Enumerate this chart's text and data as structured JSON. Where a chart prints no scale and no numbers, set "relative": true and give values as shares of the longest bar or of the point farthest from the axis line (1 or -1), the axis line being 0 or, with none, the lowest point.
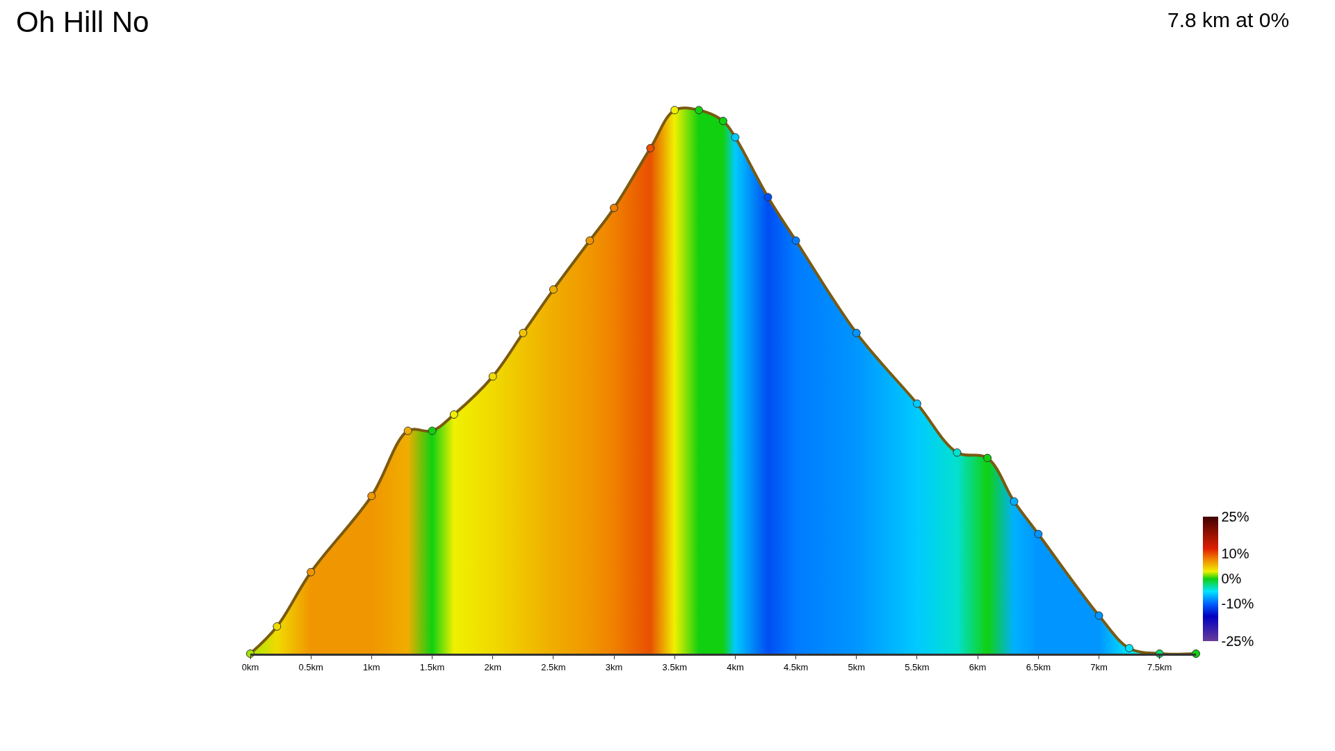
{
  "chart_data": {
    "type": "area",
    "title": "Oh Hill No",
    "subtitle": "7.8 km at 0%",
    "relative": true,
    "grid": false,
    "marker": "circle",
    "x": [
      0,
      0.22,
      0.5,
      1,
      1.3,
      1.5,
      1.68,
      2,
      2.25,
      2.5,
      2.8,
      3,
      3.3,
      3.5,
      3.7,
      3.9,
      4,
      4.27,
      4.5,
      5,
      5.5,
      5.83,
      6.08,
      6.3,
      6.5,
      7,
      7.25,
      7.5,
      7.8
    ],
    "values": [
      0,
      0.05,
      0.15,
      0.29,
      0.41,
      0.41,
      0.44,
      0.51,
      0.59,
      0.67,
      0.76,
      0.82,
      0.93,
      1,
      1,
      0.98,
      0.95,
      0.84,
      0.76,
      0.59,
      0.46,
      0.37,
      0.36,
      0.28,
      0.22,
      0.07,
      0.01,
      0,
      0
    ],
    "colors": [
      "#a5e505",
      "#f0da00",
      "#f09600",
      "#f09600",
      "#f0ad00",
      "#10d010",
      "#f0f000",
      "#f0da00",
      "#f0c300",
      "#f0ad00",
      "#f09600",
      "#f08000",
      "#e85000",
      "#f0f000",
      "#10d010",
      "#10d010",
      "#00caff",
      "#004df2",
      "#007bff",
      "#0095ff",
      "#00caff",
      "#03e1cf",
      "#10d010",
      "#00b0ff",
      "#0095ff",
      "#0095ff",
      "#00e5ff",
      "#0ad870",
      "#10d010"
    ],
    "xlim": [
      0,
      7.8
    ],
    "xticks": [
      {
        "value": 0,
        "label": "0km"
      },
      {
        "value": 0.5,
        "label": "0.5km"
      },
      {
        "value": 1,
        "label": "1km"
      },
      {
        "value": 1.5,
        "label": "1.5km"
      },
      {
        "value": 2,
        "label": "2km"
      },
      {
        "value": 2.5,
        "label": "2.5km"
      },
      {
        "value": 3,
        "label": "3km"
      },
      {
        "value": 3.5,
        "label": "3.5km"
      },
      {
        "value": 4,
        "label": "4km"
      },
      {
        "value": 4.5,
        "label": "4.5km"
      },
      {
        "value": 5,
        "label": "5km"
      },
      {
        "value": 5.5,
        "label": "5.5km"
      },
      {
        "value": 6,
        "label": "6km"
      },
      {
        "value": 6.5,
        "label": "6.5km"
      },
      {
        "value": 7,
        "label": "7km"
      },
      {
        "value": 7.5,
        "label": "7.5km"
      }
    ],
    "clim": [
      -25,
      25
    ],
    "cticks": [
      {
        "value": 25,
        "label": "25%"
      },
      {
        "value": 10,
        "label": "10%"
      },
      {
        "value": 0,
        "label": "0%"
      },
      {
        "value": -10,
        "label": "-10%"
      },
      {
        "value": -25,
        "label": "-25%"
      }
    ]
  }
}
